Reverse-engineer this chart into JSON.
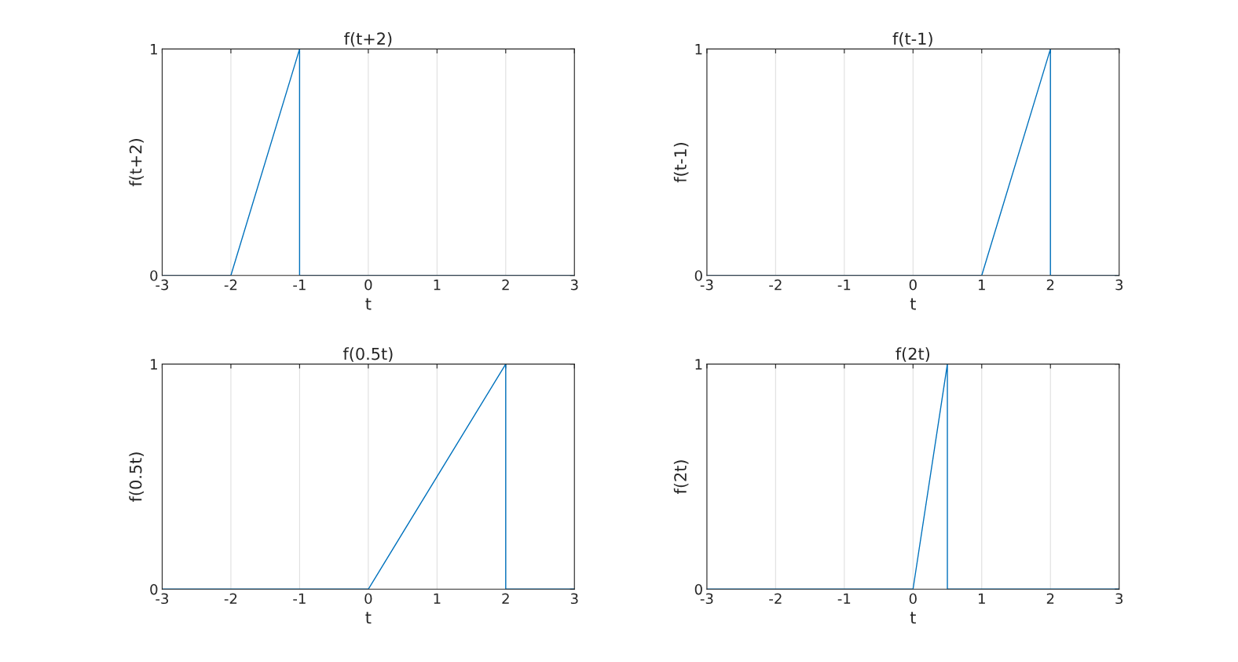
{
  "chart_data": [
    {
      "type": "line",
      "title": "f(t+2)",
      "xlabel": "t",
      "ylabel": "f(t+2)",
      "xlim": [
        -3,
        3
      ],
      "xticks": [
        -3,
        -2,
        -1,
        0,
        1,
        2,
        3
      ],
      "ylim": [
        0,
        1
      ],
      "yticks": [
        0,
        1
      ],
      "grid": "x",
      "series": [
        {
          "color": "#0072bd",
          "x": [
            -3,
            -2,
            -1,
            -1,
            3
          ],
          "values": [
            0,
            0,
            1,
            0,
            0
          ]
        }
      ]
    },
    {
      "type": "line",
      "title": "f(t-1)",
      "xlabel": "t",
      "ylabel": "f(t-1)",
      "xlim": [
        -3,
        3
      ],
      "xticks": [
        -3,
        -2,
        -1,
        0,
        1,
        2,
        3
      ],
      "ylim": [
        0,
        1
      ],
      "yticks": [
        0,
        1
      ],
      "grid": "x",
      "series": [
        {
          "color": "#0072bd",
          "x": [
            -3,
            1,
            2,
            2,
            3
          ],
          "values": [
            0,
            0,
            1,
            0,
            0
          ]
        }
      ]
    },
    {
      "type": "line",
      "title": "f(0.5t)",
      "xlabel": "t",
      "ylabel": "f(0.5t)",
      "xlim": [
        -3,
        3
      ],
      "xticks": [
        -3,
        -2,
        -1,
        0,
        1,
        2,
        3
      ],
      "ylim": [
        0,
        1
      ],
      "yticks": [
        0,
        1
      ],
      "grid": "x",
      "series": [
        {
          "color": "#0072bd",
          "x": [
            -3,
            0,
            2,
            2,
            3
          ],
          "values": [
            0,
            0,
            1,
            0,
            0
          ]
        }
      ]
    },
    {
      "type": "line",
      "title": "f(2t)",
      "xlabel": "t",
      "ylabel": "f(2t)",
      "xlim": [
        -3,
        3
      ],
      "xticks": [
        -3,
        -2,
        -1,
        0,
        1,
        2,
        3
      ],
      "ylim": [
        0,
        1
      ],
      "yticks": [
        0,
        1
      ],
      "grid": "x",
      "series": [
        {
          "color": "#0072bd",
          "x": [
            -3,
            0,
            0.5,
            0.5,
            3
          ],
          "values": [
            0,
            0,
            1,
            0,
            0
          ]
        }
      ]
    }
  ]
}
